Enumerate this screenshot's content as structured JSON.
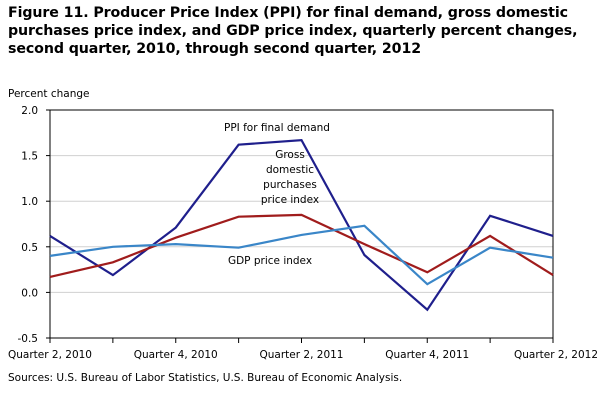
{
  "title": "Figure 11. Producer Price Index (PPI) for final demand, gross domestic purchases price index,  and GDP price index, quarterly percent changes, second quarter, 2010, through second quarter, 2012",
  "source": "Sources: U.S. Bureau of Labor Statistics, U.S. Bureau of Economic Analysis.",
  "chart_data": {
    "type": "line",
    "ylabel": "Percent change",
    "xlabel": "",
    "ylim": [
      -0.5,
      2.0
    ],
    "yticks": [
      "2.0",
      "1.5",
      "1.0",
      "0.5",
      "0.0",
      "-0.5"
    ],
    "ytick_values": [
      2.0,
      1.5,
      1.0,
      0.5,
      0.0,
      -0.5
    ],
    "x": [
      "Quarter 2, 2010",
      "Quarter 3, 2010",
      "Quarter 4, 2010",
      "Quarter 1, 2011",
      "Quarter 2, 2011",
      "Quarter 3, 2011",
      "Quarter 4, 2011",
      "Quarter 1, 2012",
      "Quarter 2, 2012"
    ],
    "xtick_labels": [
      "Quarter 2, 2010",
      "",
      "Quarter 4, 2010",
      "",
      "Quarter 2, 2011",
      "",
      "Quarter 4, 2011",
      "",
      "Quarter 2, 2012"
    ],
    "grid": "horizontal",
    "series": [
      {
        "name": "PPI for final demand",
        "color": "#1f1f8c",
        "values": [
          0.62,
          0.19,
          0.71,
          1.62,
          1.67,
          0.41,
          -0.19,
          0.84,
          0.62
        ]
      },
      {
        "name": "Gross domestic purchases price index",
        "label_lines": [
          "Gross",
          "domestic",
          "purchases",
          "price index"
        ],
        "color": "#a01c1c",
        "values": [
          0.17,
          0.33,
          0.6,
          0.83,
          0.85,
          0.53,
          0.22,
          0.62,
          0.19
        ]
      },
      {
        "name": "GDP price index",
        "color": "#3a86c8",
        "values": [
          0.4,
          0.5,
          0.53,
          0.49,
          0.63,
          0.73,
          0.09,
          0.49,
          0.38
        ]
      }
    ]
  }
}
